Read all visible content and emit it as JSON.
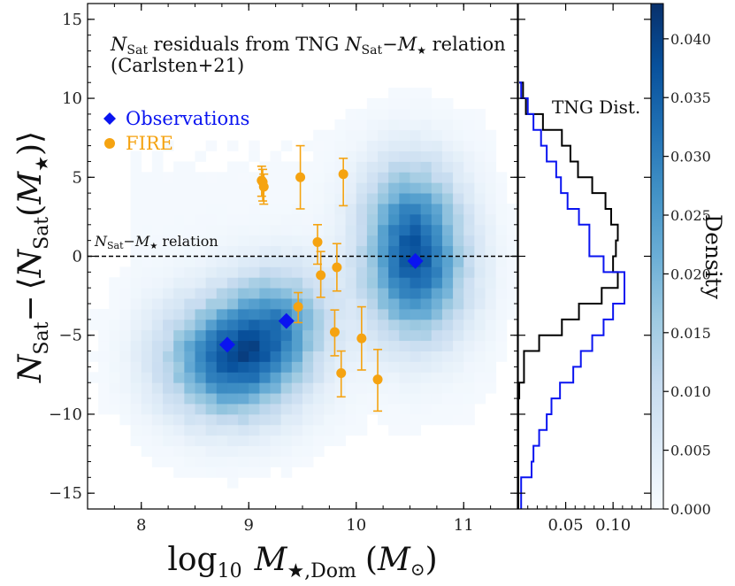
{
  "chart_data": [
    {
      "type": "scatter",
      "panel": "main",
      "title": "N_Sat residuals from TNG N_Sat−M★ relation",
      "title_parts": {
        "n": "N",
        "sub": "Sat",
        "rest": " residuals from TNG ",
        "rest2": "−",
        "m": "M",
        "star": "★",
        "end": " relation"
      },
      "subtitle": "(Carlsten+21)",
      "xlabel": "log10 M★,Dom (M⊙)",
      "xlabel_parts": {
        "log": "log",
        "log_sub": "10",
        "m": "M",
        "m_sub": "★,Dom",
        "paren_open": "(",
        "msun": "M",
        "sun": "⊙",
        "paren_close": ")"
      },
      "ylabel": "N_Sat − ⟨N_Sat(M★)⟩",
      "ylabel_parts": {
        "n": "N",
        "sub": "Sat",
        "minus": "−",
        "lang": "⟨",
        "n2": "N",
        "sub2": "Sat",
        "open": "(",
        "m": "M",
        "star": "★",
        "close": ")",
        "rang": "⟩"
      },
      "xlim": [
        7.5,
        11.5
      ],
      "ylim": [
        -16,
        16
      ],
      "x_ticks": [
        8,
        9,
        10,
        11
      ],
      "x_tick_labels": [
        "8",
        "9",
        "10",
        "11"
      ],
      "y_ticks": [
        -15,
        -10,
        -5,
        0,
        5,
        10,
        15
      ],
      "y_tick_labels": [
        "−15",
        "−10",
        "−5",
        "0",
        "5",
        "10",
        "15"
      ],
      "reference_line": {
        "y": 0,
        "style": "dashed",
        "label": "N_Sat−M★ relation",
        "label_parts": {
          "n": "N",
          "sub": "Sat",
          "minus": "−",
          "m": "M",
          "star": "★",
          "rest": " relation"
        }
      },
      "legend": {
        "position": "upper-left",
        "entries": [
          {
            "label": "Observations",
            "marker": "diamond",
            "color": "#0a14f0"
          },
          {
            "label": "FIRE",
            "marker": "circle",
            "color": "#f5a311"
          }
        ]
      },
      "density_background": {
        "colormap": "Blues",
        "blobs": [
          {
            "center": [
              8.85,
              -6.5
            ],
            "sigma": [
              0.42,
              2.5
            ],
            "weight": 1.0
          },
          {
            "center": [
              9.3,
              -3.8
            ],
            "sigma": [
              0.3,
              2.2
            ],
            "weight": 0.5
          },
          {
            "center": [
              10.55,
              -1.0
            ],
            "sigma": [
              0.32,
              3.0
            ],
            "weight": 0.85
          },
          {
            "center": [
              10.5,
              3.0
            ],
            "sigma": [
              0.3,
              2.6
            ],
            "weight": 0.45
          }
        ]
      },
      "series": [
        {
          "name": "Observations",
          "marker": "diamond",
          "color": "#0a14f0",
          "points": [
            {
              "x": 8.8,
              "y": -5.6
            },
            {
              "x": 9.35,
              "y": -4.1
            },
            {
              "x": 10.55,
              "y": -0.3
            }
          ]
        },
        {
          "name": "FIRE",
          "marker": "circle",
          "color": "#f5a311",
          "points": [
            {
              "x": 9.12,
              "y": 4.8,
              "ylo": 3.8,
              "yhi": 5.7
            },
            {
              "x": 9.13,
              "y": 4.7,
              "ylo": 3.5,
              "yhi": 5.5
            },
            {
              "x": 9.14,
              "y": 4.4,
              "ylo": 3.3,
              "yhi": 5.2
            },
            {
              "x": 9.48,
              "y": 5.0,
              "ylo": 3.0,
              "yhi": 7.0
            },
            {
              "x": 9.88,
              "y": 5.2,
              "ylo": 3.2,
              "yhi": 6.2
            },
            {
              "x": 9.64,
              "y": 0.9,
              "ylo": -0.5,
              "yhi": 2.0
            },
            {
              "x": 9.67,
              "y": -1.2,
              "ylo": -2.6,
              "yhi": 0.3
            },
            {
              "x": 9.82,
              "y": -0.7,
              "ylo": -2.2,
              "yhi": 0.8
            },
            {
              "x": 9.46,
              "y": -3.2,
              "ylo": -4.2,
              "yhi": -2.3
            },
            {
              "x": 9.8,
              "y": -4.8,
              "ylo": -6.3,
              "yhi": -3.4
            },
            {
              "x": 9.86,
              "y": -7.4,
              "ylo": -8.9,
              "yhi": -6.0
            },
            {
              "x": 10.05,
              "y": -5.2,
              "ylo": -7.2,
              "yhi": -3.2
            },
            {
              "x": 10.2,
              "y": -7.8,
              "ylo": -9.8,
              "yhi": -5.9
            }
          ]
        }
      ]
    },
    {
      "type": "histogram",
      "panel": "right",
      "orientation": "horizontal",
      "label": "TNG Dist.",
      "xlim": [
        0,
        0.14
      ],
      "ylim": [
        -16,
        16
      ],
      "x_ticks": [
        0.05,
        0.1
      ],
      "x_tick_labels": [
        "0.05",
        "0.10"
      ],
      "bin_edges": [
        -16,
        -15,
        -14,
        -13,
        -12,
        -11,
        -10,
        -9,
        -8,
        -7,
        -6,
        -5,
        -4,
        -3,
        -2,
        -1,
        0,
        1,
        2,
        3,
        4,
        5,
        6,
        7,
        8,
        9,
        10,
        11
      ],
      "series": [
        {
          "name": "TNG black",
          "color": "#000000",
          "values": [
            0,
            0,
            0,
            0,
            0,
            0,
            0,
            0.001,
            0.006,
            0.006,
            0.022,
            0.046,
            0.064,
            0.088,
            0.105,
            0.1,
            0.103,
            0.105,
            0.098,
            0.092,
            0.078,
            0.063,
            0.055,
            0.046,
            0.026,
            0.008,
            0.005,
            0.001
          ]
        },
        {
          "name": "TNG blue",
          "color": "#0a14f0",
          "values": [
            0.003,
            0.003,
            0.014,
            0.016,
            0.022,
            0.03,
            0.035,
            0.044,
            0.058,
            0.066,
            0.078,
            0.09,
            0.1,
            0.112,
            0.112,
            0.09,
            0.075,
            0.075,
            0.064,
            0.052,
            0.045,
            0.04,
            0.03,
            0.024,
            0.016,
            0.01,
            0.003,
            0.001
          ]
        }
      ]
    },
    {
      "type": "colorbar",
      "panel": "colorbar",
      "label": "Density",
      "range": [
        0,
        0.043
      ],
      "colormap": "Blues",
      "ticks": [
        0,
        0.005,
        0.01,
        0.015,
        0.02,
        0.025,
        0.03,
        0.035,
        0.04
      ],
      "tick_labels": [
        "0.000",
        "0.005",
        "0.010",
        "0.015",
        "0.020",
        "0.025",
        "0.030",
        "0.035",
        "0.040"
      ]
    }
  ]
}
